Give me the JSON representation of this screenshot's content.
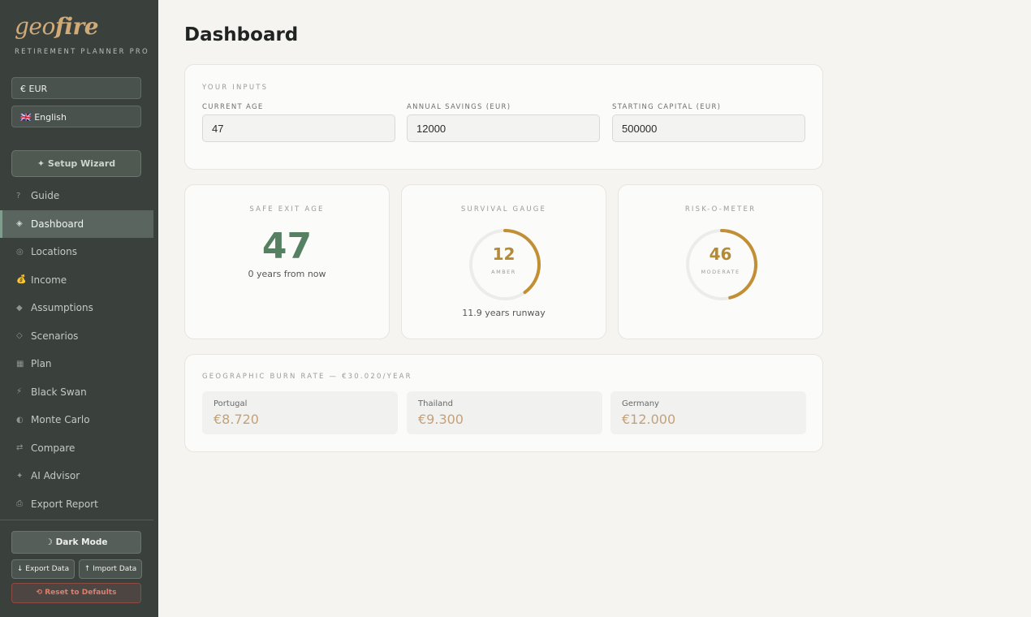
{
  "brand": {
    "logo_light": "geo",
    "logo_bold": "fire",
    "tagline": "RETIREMENT PLANNER PRO"
  },
  "sidebar": {
    "currency": "€ EUR",
    "language": "🇬🇧 English",
    "wizard": "✦ Setup Wizard",
    "items": [
      {
        "icon": "?",
        "label": "Guide"
      },
      {
        "icon": "◈",
        "label": "Dashboard"
      },
      {
        "icon": "◎",
        "label": "Locations"
      },
      {
        "icon": "💰",
        "label": "Income"
      },
      {
        "icon": "◆",
        "label": "Assumptions"
      },
      {
        "icon": "◇",
        "label": "Scenarios"
      },
      {
        "icon": "▦",
        "label": "Plan"
      },
      {
        "icon": "⚡",
        "label": "Black Swan"
      },
      {
        "icon": "◐",
        "label": "Monte Carlo"
      },
      {
        "icon": "⇄",
        "label": "Compare"
      },
      {
        "icon": "✦",
        "label": "AI Advisor"
      },
      {
        "icon": "⎙",
        "label": "Export Report"
      }
    ],
    "active_index": 1,
    "dark_mode": "☽ Dark Mode",
    "export": "↓ Export Data",
    "import": "↑ Import Data",
    "reset": "⟲ Reset to Defaults"
  },
  "main": {
    "title": "Dashboard",
    "inputs": {
      "section": "YOUR INPUTS",
      "age_label": "CURRENT AGE",
      "age_value": "47",
      "savings_label": "ANNUAL SAVINGS (EUR)",
      "savings_value": "12000",
      "capital_label": "STARTING CAPITAL (EUR)",
      "capital_value": "500000"
    },
    "safe_exit": {
      "label": "SAFE EXIT AGE",
      "value": "47",
      "sub": "0 years from now"
    },
    "survival": {
      "label": "SURVIVAL GAUGE",
      "value": "12",
      "tag": "AMBER",
      "sub": "11.9 years runway",
      "fill_fraction": 0.4
    },
    "risk": {
      "label": "RISK-O-METER",
      "value": "46",
      "tag": "MODERATE",
      "fill_fraction": 0.46
    },
    "burn": {
      "section": "GEOGRAPHIC BURN RATE — €30.020/YEAR",
      "items": [
        {
          "country": "Portugal",
          "value": "€8.720"
        },
        {
          "country": "Thailand",
          "value": "€9.300"
        },
        {
          "country": "Germany",
          "value": "€12.000"
        }
      ]
    }
  },
  "colors": {
    "accent_green": "#558062",
    "gauge_amber": "#c28f34",
    "burn_value": "#c3a27a",
    "sidebar_bg": "#3a413d"
  }
}
